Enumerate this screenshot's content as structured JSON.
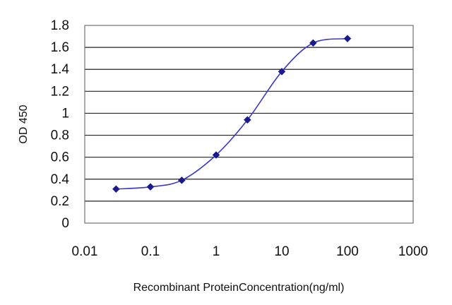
{
  "chart_data": {
    "type": "line",
    "title": "",
    "xlabel": "Recombinant ProteinConcentration(ng/ml)",
    "ylabel": "OD 450",
    "x_scale": "log",
    "xlim": [
      0.01,
      1000
    ],
    "ylim": [
      0,
      1.8
    ],
    "x_ticks": [
      0.01,
      0.1,
      1,
      10,
      100,
      1000
    ],
    "x_tick_labels": [
      "0.01",
      "0.1",
      "1",
      "10",
      "100",
      "1000"
    ],
    "y_ticks": [
      0,
      0.2,
      0.4,
      0.6,
      0.8,
      1,
      1.2,
      1.4,
      1.6,
      1.8
    ],
    "y_tick_labels": [
      "0",
      "0.2",
      "0.4",
      "0.6",
      "0.8",
      "1",
      "1.2",
      "1.4",
      "1.6",
      "1.8"
    ],
    "grid": "horizontal",
    "legend": "none",
    "series": [
      {
        "x": [
          0.03,
          0.1,
          0.3,
          1,
          3,
          10,
          30,
          100
        ],
        "y": [
          0.31,
          0.33,
          0.39,
          0.62,
          0.94,
          1.38,
          1.64,
          1.68
        ],
        "color": "#3a3ac8",
        "marker_color": "#1a1a8c",
        "marker": "diamond"
      }
    ]
  }
}
